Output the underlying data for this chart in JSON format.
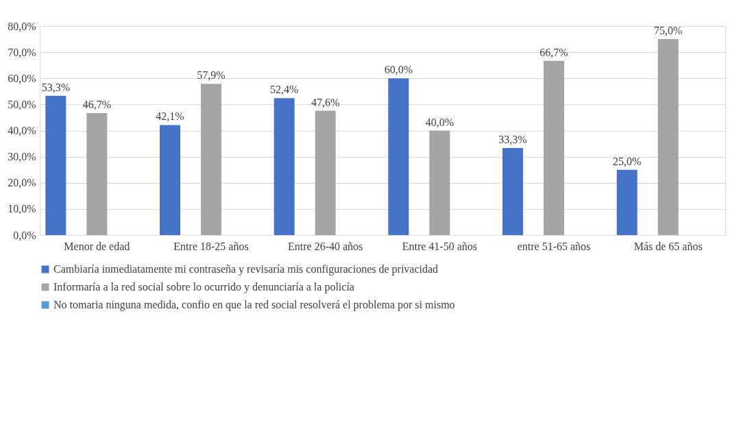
{
  "chart_data": {
    "type": "bar",
    "categories": [
      "Menor de edad",
      "Entre 18-25 años",
      "Entre 26-40 años",
      "Entre 41-50 años",
      "entre 51-65 años",
      "Más de 65 años"
    ],
    "series": [
      {
        "name": "Cambiaría inmediatamente mi contraseña y revisaría mis configuraciones de privacidad",
        "color": "#4472c4",
        "values": [
          53.3,
          42.1,
          52.4,
          60.0,
          33.3,
          25.0
        ],
        "value_labels": [
          "53,3%",
          "42,1%",
          "52,4%",
          "60,0%",
          "33,3%",
          "25,0%"
        ]
      },
      {
        "name": "Informaría a la red social sobre lo ocurrido y denunciaría a la policía",
        "color": "#a5a5a5",
        "values": [
          46.7,
          57.9,
          47.6,
          40.0,
          66.7,
          75.0
        ],
        "value_labels": [
          "46,7%",
          "57,9%",
          "47,6%",
          "40,0%",
          "66,7%",
          "75,0%"
        ]
      },
      {
        "name": "No tomaria ninguna medida, confio en que la red social resolverá el problema por si mismo",
        "color": "#5b9bd5",
        "values": [
          null,
          null,
          null,
          null,
          null,
          null
        ]
      }
    ],
    "ylim": [
      0,
      80
    ],
    "yticks": [
      {
        "value": 0,
        "label": "0,0%"
      },
      {
        "value": 10,
        "label": "10,0%"
      },
      {
        "value": 20,
        "label": "20,0%"
      },
      {
        "value": 30,
        "label": "30,0%"
      },
      {
        "value": 40,
        "label": "40,0%"
      },
      {
        "value": 50,
        "label": "50,0%"
      },
      {
        "value": 60,
        "label": "60,0%"
      },
      {
        "value": 70,
        "label": "70,0%"
      },
      {
        "value": 80,
        "label": "80,0%"
      }
    ],
    "grid": "y",
    "legend": "bottom"
  }
}
